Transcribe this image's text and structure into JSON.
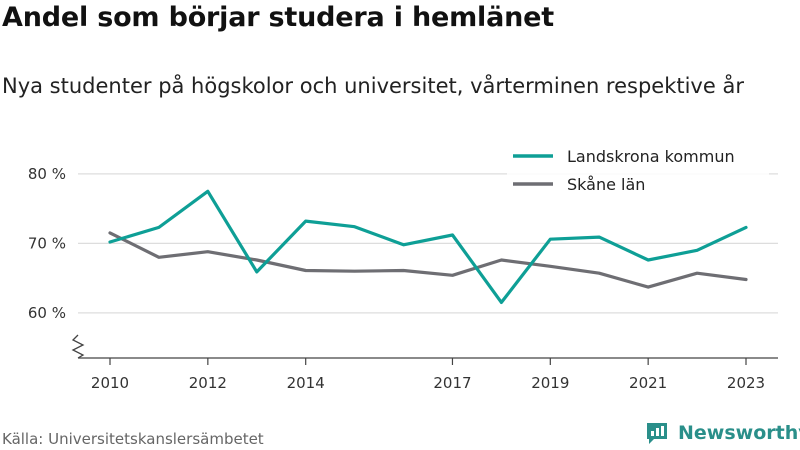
{
  "header": {
    "title": "Andel som börjar studera i hemlänet",
    "subtitle": "Nya studenter på högskolor och universitet, vårterminen respektive år"
  },
  "footer": {
    "source": "Källa: Universitetskanslersämbetet",
    "brand": "Newsworthy"
  },
  "colors": {
    "landskrona": "#0e9f96",
    "skane": "#6e6e73",
    "grid": "#dddddd",
    "axis": "#444444",
    "brand": "#2a8f8a"
  },
  "chart_data": {
    "type": "line",
    "x": [
      2010,
      2011,
      2012,
      2013,
      2014,
      2015,
      2016,
      2017,
      2018,
      2019,
      2020,
      2021,
      2022,
      2023
    ],
    "x_tick_labels": [
      "2010",
      "2012",
      "2014",
      "2017",
      "2019",
      "2021",
      "2023"
    ],
    "x_tick_values": [
      2010,
      2012,
      2014,
      2017,
      2019,
      2021,
      2023
    ],
    "y_tick_labels": [
      "80 %",
      "70 %",
      "60 %"
    ],
    "y_tick_values": [
      80,
      70,
      60
    ],
    "ylim": [
      53.5,
      82
    ],
    "y_axis_break": true,
    "grid": true,
    "legend_position": "top-right",
    "series": [
      {
        "name": "Landskrona kommun",
        "color": "#0e9f96",
        "values": [
          70.2,
          72.3,
          77.5,
          65.9,
          73.2,
          72.4,
          69.8,
          71.2,
          61.5,
          70.6,
          70.9,
          67.6,
          69.0,
          72.3
        ]
      },
      {
        "name": "Skåne län",
        "color": "#6e6e73",
        "values": [
          71.5,
          68.0,
          68.8,
          67.6,
          66.1,
          66.0,
          66.1,
          65.4,
          67.6,
          66.7,
          65.7,
          63.7,
          65.7,
          64.8
        ]
      }
    ]
  }
}
